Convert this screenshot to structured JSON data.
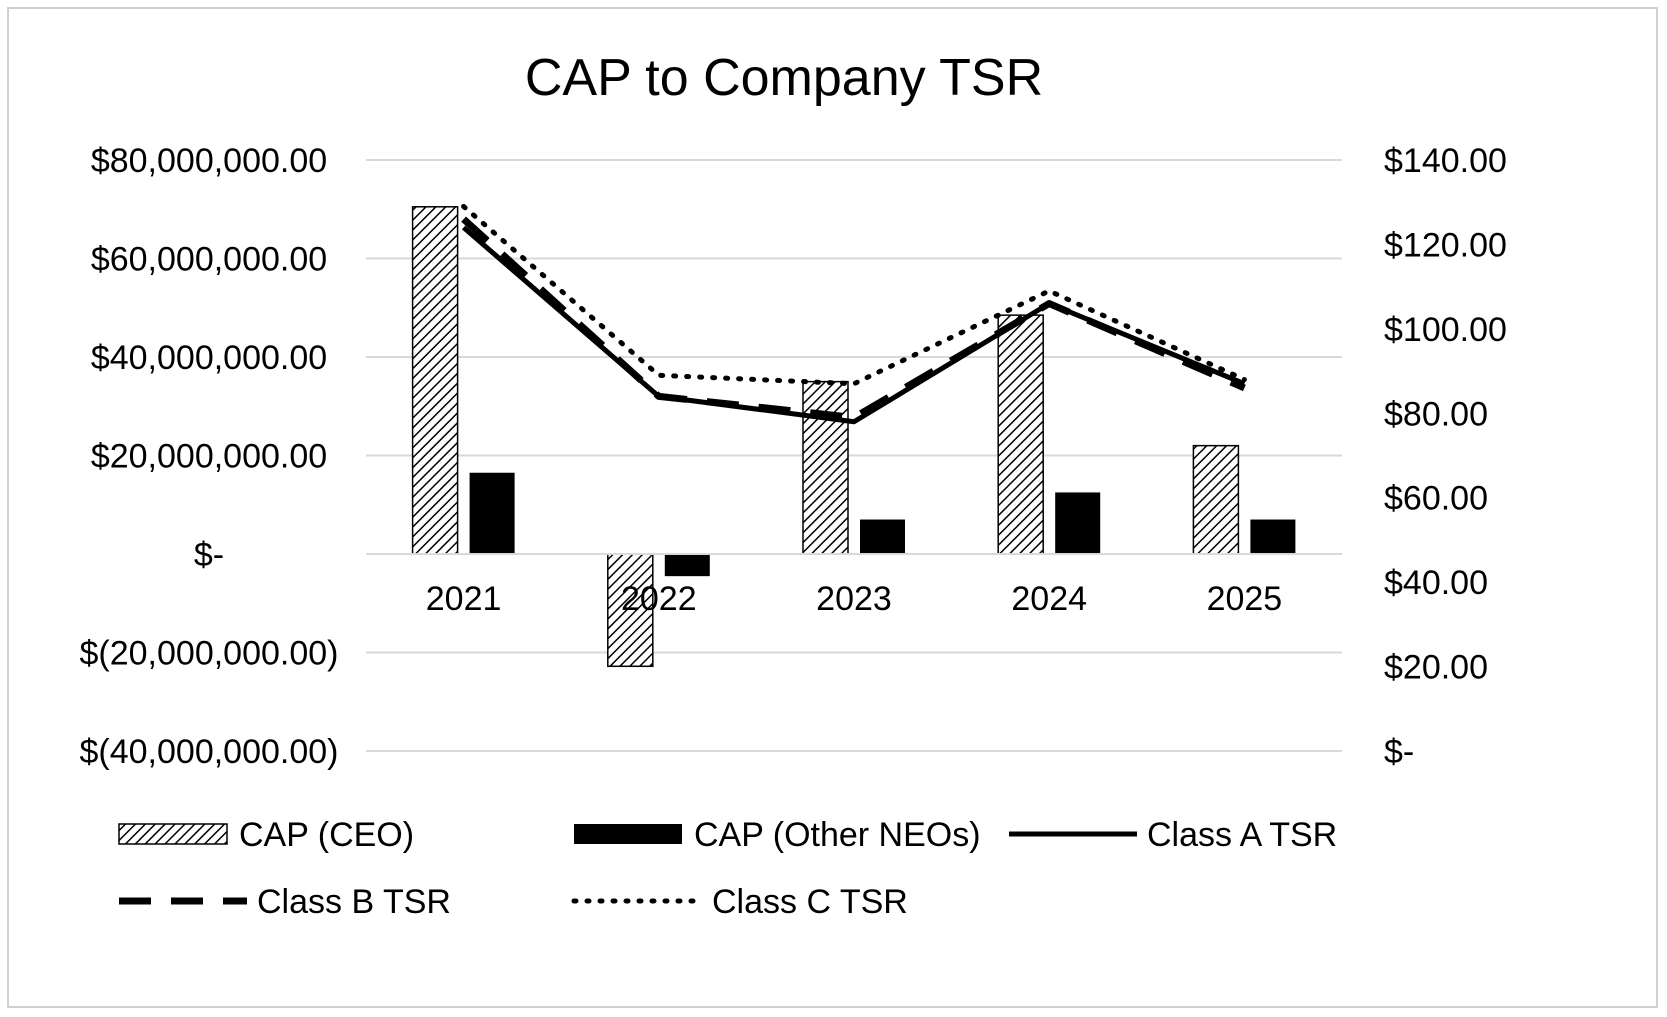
{
  "chart_data": {
    "type": "bar",
    "title": "CAP to Company TSR",
    "categories": [
      "2021",
      "2022",
      "2023",
      "2024",
      "2025"
    ],
    "y_left": {
      "min": -40000000,
      "max": 80000000,
      "ticks": [
        80000000,
        60000000,
        40000000,
        20000000,
        0,
        -20000000,
        -40000000
      ],
      "tick_labels": [
        "$80,000,000.00",
        "$60,000,000.00",
        "$40,000,000.00",
        "$20,000,000.00",
        "$-",
        "$(20,000,000.00)",
        "$(40,000,000.00)"
      ]
    },
    "y_right": {
      "min": 0,
      "max": 140,
      "ticks": [
        140,
        120,
        100,
        80,
        60,
        40,
        20,
        0
      ],
      "tick_labels": [
        "$140.00",
        "$120.00",
        "$100.00",
        "$80.00",
        "$60.00",
        "$40.00",
        "$20.00",
        "$-"
      ]
    },
    "grid": true,
    "legend_position": "bottom",
    "series": [
      {
        "name": "CAP (CEO)",
        "kind": "bar",
        "axis": "left",
        "style": "hatched",
        "values": [
          70500000,
          -22800000,
          35000000,
          48500000,
          22000000
        ]
      },
      {
        "name": "CAP (Other NEOs)",
        "kind": "bar",
        "axis": "left",
        "style": "solid",
        "values": [
          16500000,
          -4500000,
          7000000,
          12500000,
          7000000
        ]
      },
      {
        "name": "Class A TSR",
        "kind": "line",
        "axis": "right",
        "style": "solid",
        "values": [
          124,
          84,
          78,
          106,
          87
        ]
      },
      {
        "name": "Class B TSR",
        "kind": "line",
        "axis": "right",
        "style": "dashed",
        "values": [
          126,
          84,
          79,
          106,
          86
        ]
      },
      {
        "name": "Class C TSR",
        "kind": "line",
        "axis": "right",
        "style": "dotted",
        "values": [
          129,
          89,
          87,
          109,
          88
        ]
      }
    ]
  }
}
